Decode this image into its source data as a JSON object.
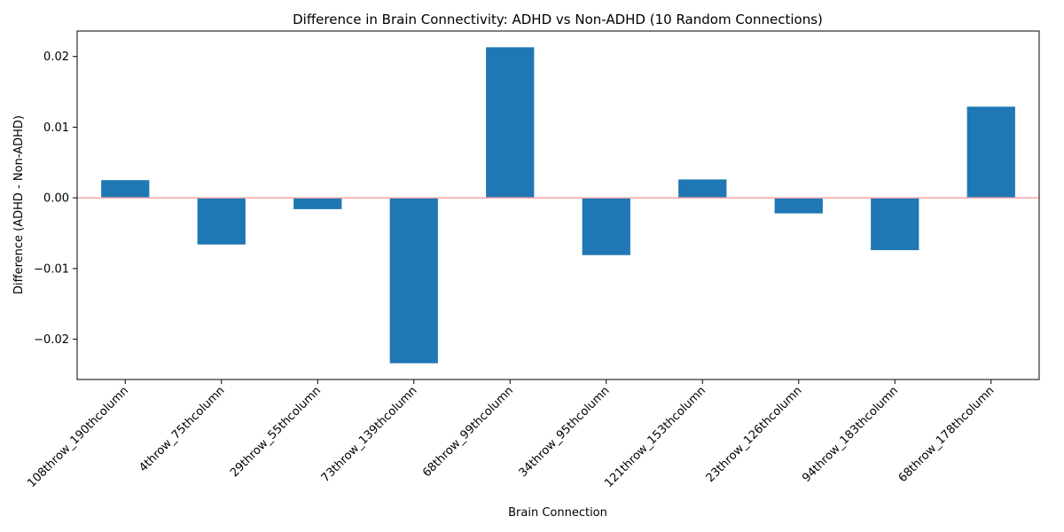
{
  "chart_data": {
    "type": "bar",
    "title": "Difference in Brain Connectivity: ADHD vs Non-ADHD (10 Random Connections)",
    "xlabel": "Brain Connection",
    "ylabel": "Difference (ADHD - Non-ADHD)",
    "categories": [
      "108throw_190thcolumn",
      "4throw_75thcolumn",
      "29throw_55thcolumn",
      "73throw_139thcolumn",
      "68throw_99thcolumn",
      "34throw_95thcolumn",
      "121throw_153thcolumn",
      "23throw_126thcolumn",
      "94throw_183thcolumn",
      "68throw_178thcolumn"
    ],
    "values": [
      0.0025,
      -0.0066,
      -0.0016,
      -0.0234,
      0.0213,
      -0.0081,
      0.0026,
      -0.0022,
      -0.0074,
      0.0129
    ],
    "ylim": [
      -0.0257,
      0.0236
    ],
    "yticks": [
      -0.02,
      -0.01,
      0.0,
      0.01,
      0.02
    ],
    "ytick_labels": [
      "−0.02",
      "−0.01",
      "0.00",
      "0.01",
      "0.02"
    ],
    "bar_color": "#1f77b4",
    "zero_line_color": "#f4a6a6",
    "grid": false,
    "legend": "none"
  }
}
